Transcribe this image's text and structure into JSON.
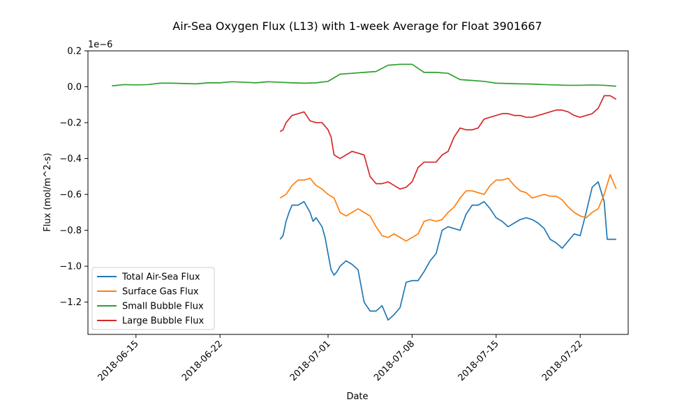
{
  "chart_data": {
    "type": "line",
    "title": "Air-Sea Oxygen Flux (L13) with 1-week Average for Float 3901667",
    "xlabel": "Date",
    "ylabel": "Flux (mol/m^2-s)",
    "y_offset_label": "1e−6",
    "y_scale_exponent": -6,
    "xlim": [
      "2018-06-11",
      "2018-07-26"
    ],
    "ylim": [
      -1.38,
      0.2
    ],
    "x_ticks": [
      "2018-06-15",
      "2018-06-22",
      "2018-07-01",
      "2018-07-08",
      "2018-07-15",
      "2018-07-22"
    ],
    "y_ticks": [
      0.2,
      0.0,
      -0.2,
      -0.4,
      -0.6,
      -0.8,
      -1.0,
      -1.2
    ],
    "y_tick_labels": [
      "0.2",
      "0.0",
      "−0.2",
      "−0.4",
      "−0.6",
      "−0.8",
      "−1.0",
      "−1.2"
    ],
    "grid": false,
    "legend_position": "bottom-left",
    "series": [
      {
        "name": "Total Air-Sea Flux",
        "color": "#1f77b4",
        "x": [
          "2018-06-27",
          "2018-06-27.25",
          "2018-06-27.5",
          "2018-06-27.75",
          "2018-06-28",
          "2018-06-28.5",
          "2018-06-29",
          "2018-06-29.5",
          "2018-06-29.75",
          "2018-06-30",
          "2018-06-30.5",
          "2018-06-30.75",
          "2018-07-01",
          "2018-07-01.25",
          "2018-07-01.5",
          "2018-07-01.75",
          "2018-07-02",
          "2018-07-02.5",
          "2018-07-03",
          "2018-07-03.5",
          "2018-07-04",
          "2018-07-04.5",
          "2018-07-04.75",
          "2018-07-05",
          "2018-07-05.5",
          "2018-07-06",
          "2018-07-06.5",
          "2018-07-07",
          "2018-07-07.5",
          "2018-07-08",
          "2018-07-08.5",
          "2018-07-09",
          "2018-07-09.5",
          "2018-07-10",
          "2018-07-10.5",
          "2018-07-11",
          "2018-07-11.5",
          "2018-07-12",
          "2018-07-12.5",
          "2018-07-13",
          "2018-07-13.5",
          "2018-07-14",
          "2018-07-14.5",
          "2018-07-15",
          "2018-07-15.5",
          "2018-07-16",
          "2018-07-16.5",
          "2018-07-17",
          "2018-07-17.5",
          "2018-07-18",
          "2018-07-18.5",
          "2018-07-19",
          "2018-07-19.5",
          "2018-07-20",
          "2018-07-20.5",
          "2018-07-21",
          "2018-07-21.5",
          "2018-07-22",
          "2018-07-22.5",
          "2018-07-23",
          "2018-07-23.5",
          "2018-07-24",
          "2018-07-24.25",
          "2018-07-24.5",
          "2018-07-24.75",
          "2018-07-25"
        ],
        "y": [
          -0.85,
          -0.83,
          -0.75,
          -0.7,
          -0.66,
          -0.66,
          -0.64,
          -0.7,
          -0.75,
          -0.73,
          -0.78,
          -0.84,
          -0.93,
          -1.02,
          -1.05,
          -1.03,
          -1.0,
          -0.97,
          -0.99,
          -1.02,
          -1.2,
          -1.25,
          -1.25,
          -1.25,
          -1.22,
          -1.3,
          -1.27,
          -1.23,
          -1.09,
          -1.08,
          -1.08,
          -1.03,
          -0.97,
          -0.93,
          -0.8,
          -0.78,
          -0.79,
          -0.8,
          -0.71,
          -0.66,
          -0.66,
          -0.64,
          -0.68,
          -0.73,
          -0.75,
          -0.78,
          -0.76,
          -0.74,
          -0.73,
          -0.74,
          -0.76,
          -0.79,
          -0.85,
          -0.87,
          -0.9,
          -0.86,
          -0.82,
          -0.83,
          -0.7,
          -0.56,
          -0.53,
          -0.64,
          -0.85,
          -0.85,
          -0.85,
          -0.85
        ]
      },
      {
        "name": "Surface Gas Flux",
        "color": "#ff7f0e",
        "x": [
          "2018-06-27",
          "2018-06-27.5",
          "2018-06-28",
          "2018-06-28.5",
          "2018-06-29",
          "2018-06-29.5",
          "2018-06-30",
          "2018-06-30.5",
          "2018-07-01",
          "2018-07-01.5",
          "2018-07-02",
          "2018-07-02.5",
          "2018-07-03",
          "2018-07-03.5",
          "2018-07-04",
          "2018-07-04.5",
          "2018-07-05",
          "2018-07-05.5",
          "2018-07-06",
          "2018-07-06.5",
          "2018-07-07",
          "2018-07-07.5",
          "2018-07-08",
          "2018-07-08.5",
          "2018-07-09",
          "2018-07-09.5",
          "2018-07-10",
          "2018-07-10.5",
          "2018-07-11",
          "2018-07-11.5",
          "2018-07-12",
          "2018-07-12.5",
          "2018-07-13",
          "2018-07-13.5",
          "2018-07-14",
          "2018-07-14.5",
          "2018-07-15",
          "2018-07-15.5",
          "2018-07-16",
          "2018-07-16.5",
          "2018-07-17",
          "2018-07-17.5",
          "2018-07-18",
          "2018-07-18.5",
          "2018-07-19",
          "2018-07-19.5",
          "2018-07-20",
          "2018-07-20.5",
          "2018-07-21",
          "2018-07-21.5",
          "2018-07-22",
          "2018-07-22.5",
          "2018-07-23",
          "2018-07-23.5",
          "2018-07-24",
          "2018-07-24.5",
          "2018-07-25"
        ],
        "y": [
          -0.62,
          -0.6,
          -0.55,
          -0.52,
          -0.52,
          -0.51,
          -0.55,
          -0.57,
          -0.6,
          -0.62,
          -0.7,
          -0.72,
          -0.7,
          -0.68,
          -0.7,
          -0.72,
          -0.78,
          -0.83,
          -0.84,
          -0.82,
          -0.84,
          -0.86,
          -0.84,
          -0.82,
          -0.75,
          -0.74,
          -0.75,
          -0.74,
          -0.7,
          -0.67,
          -0.62,
          -0.58,
          -0.58,
          -0.59,
          -0.6,
          -0.55,
          -0.52,
          -0.52,
          -0.51,
          -0.55,
          -0.58,
          -0.59,
          -0.62,
          -0.61,
          -0.6,
          -0.61,
          -0.61,
          -0.63,
          -0.67,
          -0.7,
          -0.72,
          -0.73,
          -0.7,
          -0.68,
          -0.6,
          -0.49,
          -0.57
        ]
      },
      {
        "name": "Small Bubble Flux",
        "color": "#2ca02c",
        "x": [
          "2018-06-13",
          "2018-06-14",
          "2018-06-15",
          "2018-06-16",
          "2018-06-17",
          "2018-06-18",
          "2018-06-19",
          "2018-06-20",
          "2018-06-21",
          "2018-06-22",
          "2018-06-23",
          "2018-06-24",
          "2018-06-25",
          "2018-06-26",
          "2018-06-27",
          "2018-06-28",
          "2018-06-29",
          "2018-06-30",
          "2018-07-01",
          "2018-07-02",
          "2018-07-03",
          "2018-07-04",
          "2018-07-05",
          "2018-07-06",
          "2018-07-07",
          "2018-07-08",
          "2018-07-09",
          "2018-07-10",
          "2018-07-11",
          "2018-07-12",
          "2018-07-13",
          "2018-07-14",
          "2018-07-15",
          "2018-07-16",
          "2018-07-17",
          "2018-07-18",
          "2018-07-19",
          "2018-07-20",
          "2018-07-21",
          "2018-07-22",
          "2018-07-23",
          "2018-07-24",
          "2018-07-25"
        ],
        "y": [
          0.005,
          0.012,
          0.01,
          0.012,
          0.02,
          0.02,
          0.018,
          0.016,
          0.022,
          0.022,
          0.028,
          0.025,
          0.022,
          0.028,
          0.025,
          0.022,
          0.02,
          0.022,
          0.03,
          0.07,
          0.075,
          0.08,
          0.085,
          0.12,
          0.125,
          0.125,
          0.08,
          0.08,
          0.075,
          0.04,
          0.035,
          0.03,
          0.02,
          0.018,
          0.016,
          0.015,
          0.012,
          0.01,
          0.008,
          0.008,
          0.01,
          0.008,
          0.003
        ]
      },
      {
        "name": "Large Bubble Flux",
        "color": "#d62728",
        "x": [
          "2018-06-27",
          "2018-06-27.25",
          "2018-06-27.5",
          "2018-06-28",
          "2018-06-28.5",
          "2018-06-29",
          "2018-06-29.5",
          "2018-06-30",
          "2018-06-30.5",
          "2018-07-01",
          "2018-07-01.25",
          "2018-07-01.5",
          "2018-07-02",
          "2018-07-02.5",
          "2018-07-03",
          "2018-07-03.5",
          "2018-07-04",
          "2018-07-04.5",
          "2018-07-05",
          "2018-07-05.5",
          "2018-07-06",
          "2018-07-06.5",
          "2018-07-07",
          "2018-07-07.5",
          "2018-07-08",
          "2018-07-08.5",
          "2018-07-09",
          "2018-07-09.5",
          "2018-07-10",
          "2018-07-10.5",
          "2018-07-11",
          "2018-07-11.5",
          "2018-07-12",
          "2018-07-12.5",
          "2018-07-13",
          "2018-07-13.5",
          "2018-07-14",
          "2018-07-14.5",
          "2018-07-15",
          "2018-07-15.5",
          "2018-07-16",
          "2018-07-16.5",
          "2018-07-17",
          "2018-07-17.5",
          "2018-07-18",
          "2018-07-18.5",
          "2018-07-19",
          "2018-07-19.5",
          "2018-07-20",
          "2018-07-20.5",
          "2018-07-21",
          "2018-07-21.5",
          "2018-07-22",
          "2018-07-22.5",
          "2018-07-23",
          "2018-07-23.5",
          "2018-07-24",
          "2018-07-24.5",
          "2018-07-25"
        ],
        "y": [
          -0.25,
          -0.24,
          -0.2,
          -0.16,
          -0.15,
          -0.14,
          -0.19,
          -0.2,
          -0.2,
          -0.24,
          -0.28,
          -0.38,
          -0.4,
          -0.38,
          -0.36,
          -0.37,
          -0.38,
          -0.5,
          -0.54,
          -0.54,
          -0.53,
          -0.55,
          -0.57,
          -0.56,
          -0.53,
          -0.45,
          -0.42,
          -0.42,
          -0.42,
          -0.38,
          -0.36,
          -0.28,
          -0.23,
          -0.24,
          -0.24,
          -0.23,
          -0.18,
          -0.17,
          -0.16,
          -0.15,
          -0.15,
          -0.16,
          -0.16,
          -0.17,
          -0.17,
          -0.16,
          -0.15,
          -0.14,
          -0.13,
          -0.13,
          -0.14,
          -0.16,
          -0.17,
          -0.16,
          -0.15,
          -0.12,
          -0.05,
          -0.05,
          -0.07
        ]
      }
    ]
  }
}
